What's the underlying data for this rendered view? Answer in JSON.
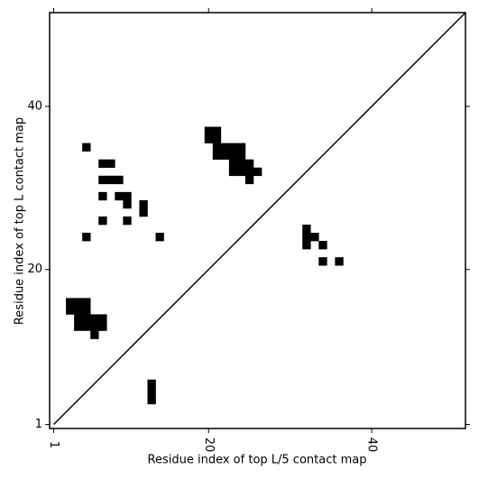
{
  "chart_data": {
    "type": "contact_map",
    "xlabel": "Residue index of top L/5 contact map",
    "ylabel": "Residue index of top L contact map",
    "xlim": [
      0.5,
      51.5
    ],
    "ylim": [
      0.5,
      51.5
    ],
    "xticks": [
      1,
      20,
      40
    ],
    "yticks": [
      1,
      20,
      40
    ],
    "color": "#000000",
    "diagonal": true,
    "x": [
      5,
      7,
      8,
      7,
      8,
      9,
      7,
      9,
      10,
      10,
      12,
      12,
      7,
      10,
      5,
      14,
      3,
      4,
      5,
      3,
      4,
      5,
      4,
      5,
      6,
      7,
      4,
      5,
      6,
      7,
      6,
      13,
      13,
      13,
      20,
      21,
      20,
      21,
      21,
      22,
      23,
      24,
      21,
      22,
      23,
      24,
      23,
      24,
      25,
      23,
      24,
      25,
      26,
      25,
      32,
      32,
      32,
      33,
      34,
      34,
      36
    ],
    "y": [
      35,
      33,
      33,
      31,
      31,
      31,
      29,
      29,
      29,
      28,
      28,
      27,
      26,
      26,
      24,
      24,
      16,
      16,
      16,
      15,
      15,
      15,
      14,
      14,
      14,
      14,
      13,
      13,
      13,
      13,
      12,
      4,
      5,
      6,
      37,
      37,
      36,
      36,
      35,
      35,
      35,
      35,
      34,
      34,
      34,
      34,
      33,
      33,
      33,
      32,
      32,
      32,
      32,
      31,
      25,
      24,
      23,
      24,
      23,
      21,
      21
    ]
  }
}
